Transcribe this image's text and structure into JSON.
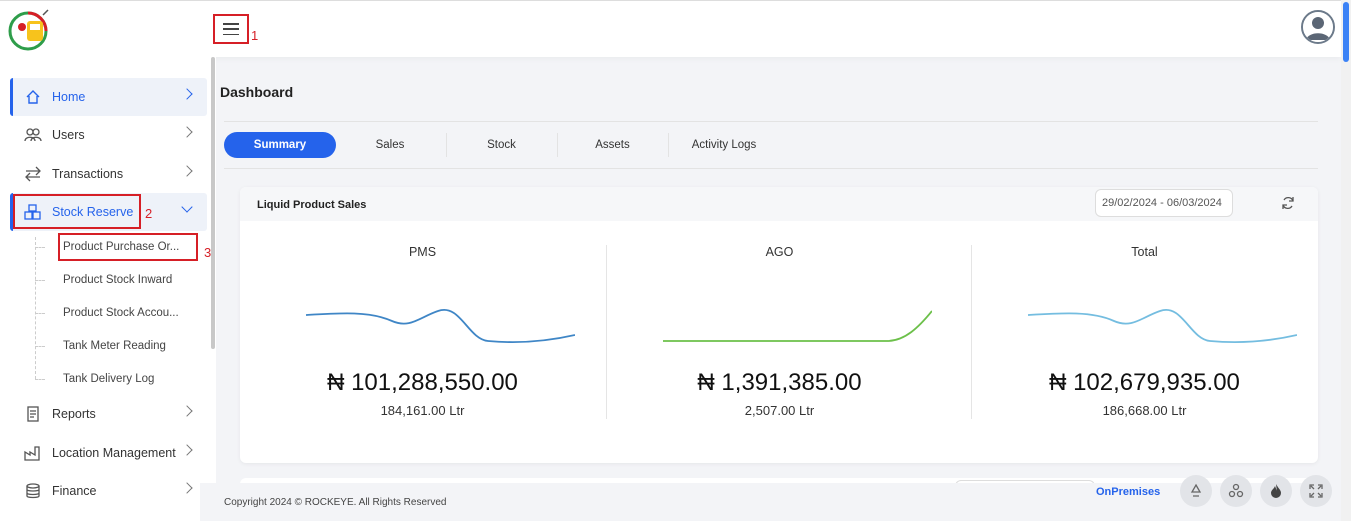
{
  "annotations": {
    "hamburger": "1",
    "stock_reserve": "2",
    "purchase_order": "3"
  },
  "sidebar": {
    "items": [
      {
        "label": "Home",
        "icon": "home-icon"
      },
      {
        "label": "Users",
        "icon": "users-icon"
      },
      {
        "label": "Transactions",
        "icon": "transfer-arrows-icon"
      },
      {
        "label": "Stock Reserve",
        "icon": "boxes-icon"
      },
      {
        "label": "Reports",
        "icon": "report-icon"
      },
      {
        "label": "Location Management",
        "icon": "factory-icon"
      },
      {
        "label": "Finance",
        "icon": "coins-icon"
      }
    ],
    "stock_reserve_children": [
      "Product Purchase Or...",
      "Product Stock Inward",
      "Product Stock Accou...",
      "Tank Meter Reading",
      "Tank Delivery Log"
    ]
  },
  "main": {
    "title": "Dashboard",
    "tabs": [
      "Summary",
      "Sales",
      "Stock",
      "Assets",
      "Activity Logs"
    ],
    "active_tab": "Summary",
    "card": {
      "title": "Liquid Product Sales",
      "date_range": "29/02/2024 - 06/03/2024",
      "columns": [
        {
          "label": "PMS",
          "amount": "₦ 101,288,550.00",
          "volume": "184,161.00 Ltr",
          "line_color": "#3f86c6"
        },
        {
          "label": "AGO",
          "amount": "₦ 1,391,385.00",
          "volume": "2,507.00 Ltr",
          "line_color": "#6cc04a"
        },
        {
          "label": "Total",
          "amount": "₦ 102,679,935.00",
          "volume": "186,668.00 Ltr",
          "line_color": "#74bde0"
        }
      ]
    }
  },
  "footer": {
    "copyright": "Copyright 2024 © ROCKEYE. All Rights Reserved",
    "mode": "OnPremises",
    "buttons": [
      "recycle-icon",
      "cluster-icon",
      "flame-icon",
      "fullscreen-icon"
    ]
  },
  "colors": {
    "accent": "#2563eb",
    "highlight": "#d61f26"
  }
}
